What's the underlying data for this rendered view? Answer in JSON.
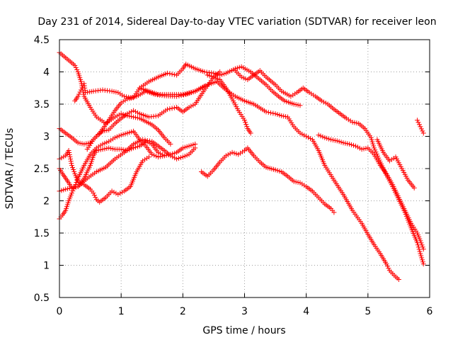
{
  "chart_data": {
    "type": "scatter",
    "title": "Day 231 of 2014, Sidereal Day-to-day VTEC variation (SDTVAR) for receiver leon",
    "xlabel": "GPS time / hours",
    "ylabel": "SDTVAR / TECUs",
    "xlim": [
      0,
      6
    ],
    "ylim": [
      0.5,
      4.5
    ],
    "xticks": [
      0,
      1,
      2,
      3,
      4,
      5,
      6
    ],
    "xtick_labels": [
      "0",
      "1",
      "2",
      "3",
      "4",
      "5",
      "6"
    ],
    "yticks": [
      0.5,
      1,
      1.5,
      2,
      2.5,
      3,
      3.5,
      4,
      4.5
    ],
    "ytick_labels": [
      "0.5",
      "1",
      "1.5",
      "2",
      "2.5",
      "3",
      "3.5",
      "4",
      "4.5"
    ],
    "grid": true,
    "marker": "+",
    "marker_color": "#ff0000",
    "series": [
      {
        "name": "s01",
        "points": [
          [
            0.0,
            4.3
          ],
          [
            0.15,
            4.18
          ],
          [
            0.25,
            4.1
          ],
          [
            0.3,
            4.0
          ],
          [
            0.35,
            3.85
          ],
          [
            0.4,
            3.62
          ],
          [
            0.5,
            3.45
          ],
          [
            0.6,
            3.3
          ],
          [
            0.75,
            3.2
          ],
          [
            0.9,
            3.3
          ],
          [
            1.0,
            3.35
          ],
          [
            1.1,
            3.32
          ],
          [
            1.2,
            3.3
          ],
          [
            1.3,
            3.28
          ],
          [
            1.5,
            3.18
          ],
          [
            1.6,
            3.1
          ],
          [
            1.7,
            2.98
          ],
          [
            1.8,
            2.88
          ]
        ]
      },
      {
        "name": "s02",
        "points": [
          [
            0.25,
            3.55
          ],
          [
            0.3,
            3.62
          ],
          [
            0.35,
            3.72
          ],
          [
            0.4,
            3.82
          ],
          [
            0.42,
            3.68
          ],
          [
            0.55,
            3.7
          ],
          [
            0.7,
            3.72
          ],
          [
            0.85,
            3.7
          ],
          [
            0.95,
            3.68
          ],
          [
            1.05,
            3.62
          ],
          [
            1.15,
            3.6
          ],
          [
            1.25,
            3.62
          ],
          [
            1.4,
            3.7
          ],
          [
            1.55,
            3.65
          ],
          [
            1.7,
            3.63
          ],
          [
            1.9,
            3.62
          ],
          [
            2.05,
            3.65
          ],
          [
            2.2,
            3.7
          ],
          [
            2.35,
            3.78
          ]
        ]
      },
      {
        "name": "s03",
        "points": [
          [
            0.0,
            3.12
          ],
          [
            0.1,
            3.05
          ],
          [
            0.2,
            2.98
          ],
          [
            0.3,
            2.9
          ],
          [
            0.4,
            2.88
          ],
          [
            0.5,
            2.9
          ],
          [
            0.6,
            3.0
          ],
          [
            0.7,
            3.08
          ],
          [
            0.8,
            3.1
          ],
          [
            0.9,
            3.2
          ],
          [
            1.0,
            3.28
          ],
          [
            1.1,
            3.35
          ],
          [
            1.2,
            3.4
          ],
          [
            1.3,
            3.35
          ],
          [
            1.45,
            3.3
          ],
          [
            1.6,
            3.32
          ],
          [
            1.75,
            3.42
          ],
          [
            1.9,
            3.45
          ],
          [
            2.0,
            3.38
          ],
          [
            2.1,
            3.45
          ],
          [
            2.2,
            3.5
          ],
          [
            2.35,
            3.72
          ],
          [
            2.5,
            3.92
          ],
          [
            2.6,
            4.0
          ]
        ]
      },
      {
        "name": "s04",
        "points": [
          [
            0.45,
            2.8
          ],
          [
            0.55,
            2.95
          ],
          [
            0.65,
            3.05
          ],
          [
            0.75,
            3.18
          ],
          [
            0.9,
            3.4
          ],
          [
            1.0,
            3.52
          ],
          [
            1.1,
            3.58
          ],
          [
            1.2,
            3.6
          ],
          [
            1.3,
            3.75
          ],
          [
            1.45,
            3.85
          ],
          [
            1.6,
            3.92
          ],
          [
            1.75,
            3.98
          ],
          [
            1.9,
            3.95
          ],
          [
            2.0,
            4.05
          ],
          [
            2.05,
            4.12
          ],
          [
            2.2,
            4.05
          ],
          [
            2.35,
            4.0
          ],
          [
            2.5,
            3.98
          ],
          [
            2.6,
            3.95
          ],
          [
            2.7,
            3.98
          ],
          [
            2.85,
            4.05
          ],
          [
            2.95,
            4.08
          ],
          [
            3.1,
            4.0
          ],
          [
            3.2,
            3.92
          ],
          [
            3.35,
            3.8
          ],
          [
            3.45,
            3.7
          ],
          [
            3.55,
            3.62
          ],
          [
            3.65,
            3.55
          ],
          [
            3.8,
            3.5
          ],
          [
            3.9,
            3.48
          ]
        ]
      },
      {
        "name": "s05",
        "points": [
          [
            1.3,
            3.75
          ],
          [
            1.45,
            3.7
          ],
          [
            1.6,
            3.65
          ],
          [
            1.8,
            3.65
          ],
          [
            2.0,
            3.65
          ],
          [
            2.2,
            3.7
          ],
          [
            2.4,
            3.8
          ],
          [
            2.55,
            3.85
          ],
          [
            2.7,
            3.72
          ],
          [
            2.85,
            3.62
          ],
          [
            3.0,
            3.55
          ],
          [
            3.15,
            3.5
          ],
          [
            3.35,
            3.38
          ],
          [
            3.5,
            3.35
          ],
          [
            3.6,
            3.32
          ],
          [
            3.7,
            3.3
          ],
          [
            3.8,
            3.15
          ],
          [
            3.9,
            3.05
          ],
          [
            4.0,
            3.0
          ],
          [
            4.1,
            2.95
          ],
          [
            4.2,
            2.78
          ],
          [
            4.3,
            2.55
          ],
          [
            4.45,
            2.32
          ],
          [
            4.6,
            2.1
          ],
          [
            4.75,
            1.85
          ],
          [
            4.9,
            1.65
          ],
          [
            5.0,
            1.48
          ],
          [
            5.1,
            1.32
          ],
          [
            5.2,
            1.18
          ],
          [
            5.3,
            1.02
          ],
          [
            5.35,
            0.92
          ],
          [
            5.45,
            0.82
          ],
          [
            5.5,
            0.78
          ]
        ]
      },
      {
        "name": "s06",
        "points": [
          [
            2.4,
            3.95
          ],
          [
            2.5,
            3.92
          ],
          [
            2.6,
            3.88
          ],
          [
            2.7,
            3.75
          ],
          [
            2.8,
            3.58
          ],
          [
            2.9,
            3.4
          ],
          [
            3.0,
            3.25
          ],
          [
            3.05,
            3.12
          ],
          [
            3.1,
            3.05
          ]
        ]
      },
      {
        "name": "s07",
        "points": [
          [
            2.85,
            4.02
          ],
          [
            2.95,
            3.92
          ],
          [
            3.05,
            3.88
          ],
          [
            3.15,
            3.95
          ],
          [
            3.25,
            4.02
          ],
          [
            3.35,
            3.92
          ],
          [
            3.5,
            3.8
          ],
          [
            3.6,
            3.7
          ],
          [
            3.75,
            3.62
          ],
          [
            3.85,
            3.68
          ],
          [
            3.95,
            3.75
          ],
          [
            4.05,
            3.68
          ],
          [
            4.15,
            3.62
          ],
          [
            4.25,
            3.55
          ],
          [
            4.35,
            3.5
          ],
          [
            4.45,
            3.42
          ],
          [
            4.55,
            3.35
          ],
          [
            4.65,
            3.28
          ],
          [
            4.75,
            3.22
          ],
          [
            4.85,
            3.2
          ],
          [
            4.95,
            3.12
          ],
          [
            5.05,
            2.98
          ],
          [
            5.1,
            2.82
          ],
          [
            5.2,
            2.6
          ],
          [
            5.3,
            2.4
          ],
          [
            5.4,
            2.22
          ],
          [
            5.5,
            2.02
          ],
          [
            5.6,
            1.82
          ],
          [
            5.7,
            1.58
          ],
          [
            5.8,
            1.35
          ],
          [
            5.85,
            1.18
          ],
          [
            5.9,
            1.02
          ]
        ]
      },
      {
        "name": "s08",
        "points": [
          [
            4.2,
            3.02
          ],
          [
            4.3,
            2.98
          ],
          [
            4.4,
            2.95
          ],
          [
            4.5,
            2.93
          ],
          [
            4.6,
            2.9
          ],
          [
            4.7,
            2.88
          ],
          [
            4.8,
            2.85
          ],
          [
            4.9,
            2.8
          ],
          [
            5.0,
            2.82
          ],
          [
            5.1,
            2.72
          ],
          [
            5.2,
            2.55
          ],
          [
            5.3,
            2.42
          ],
          [
            5.4,
            2.25
          ],
          [
            5.5,
            2.05
          ],
          [
            5.6,
            1.85
          ],
          [
            5.7,
            1.65
          ],
          [
            5.8,
            1.5
          ],
          [
            5.85,
            1.38
          ],
          [
            5.9,
            1.25
          ]
        ]
      },
      {
        "name": "s09",
        "points": [
          [
            5.8,
            3.25
          ],
          [
            5.85,
            3.15
          ],
          [
            5.9,
            3.05
          ]
        ]
      },
      {
        "name": "s10",
        "points": [
          [
            5.15,
            2.95
          ],
          [
            5.25,
            2.75
          ],
          [
            5.35,
            2.62
          ],
          [
            5.45,
            2.68
          ],
          [
            5.55,
            2.5
          ],
          [
            5.65,
            2.32
          ],
          [
            5.75,
            2.2
          ]
        ]
      },
      {
        "name": "s11",
        "points": [
          [
            0.0,
            2.65
          ],
          [
            0.1,
            2.7
          ],
          [
            0.15,
            2.78
          ],
          [
            0.2,
            2.55
          ],
          [
            0.25,
            2.42
          ],
          [
            0.3,
            2.3
          ],
          [
            0.4,
            2.25
          ],
          [
            0.5,
            2.18
          ],
          [
            0.55,
            2.12
          ],
          [
            0.6,
            2.02
          ],
          [
            0.65,
            1.98
          ],
          [
            0.75,
            2.05
          ],
          [
            0.85,
            2.15
          ],
          [
            0.95,
            2.1
          ],
          [
            1.05,
            2.15
          ],
          [
            1.15,
            2.22
          ],
          [
            1.25,
            2.45
          ],
          [
            1.35,
            2.62
          ],
          [
            1.45,
            2.68
          ]
        ]
      },
      {
        "name": "s12",
        "points": [
          [
            0.0,
            2.5
          ],
          [
            0.05,
            2.42
          ],
          [
            0.1,
            2.35
          ],
          [
            0.15,
            2.28
          ],
          [
            0.2,
            2.2
          ],
          [
            0.3,
            2.22
          ],
          [
            0.45,
            2.35
          ],
          [
            0.6,
            2.45
          ],
          [
            0.75,
            2.52
          ],
          [
            0.9,
            2.65
          ],
          [
            1.05,
            2.75
          ],
          [
            1.2,
            2.88
          ],
          [
            1.35,
            2.95
          ],
          [
            1.5,
            2.92
          ],
          [
            1.6,
            2.85
          ],
          [
            1.7,
            2.78
          ],
          [
            1.8,
            2.7
          ],
          [
            1.9,
            2.65
          ],
          [
            2.0,
            2.68
          ],
          [
            2.1,
            2.72
          ],
          [
            2.2,
            2.82
          ]
        ]
      },
      {
        "name": "s13",
        "points": [
          [
            0.0,
            2.15
          ],
          [
            0.1,
            2.18
          ],
          [
            0.2,
            2.2
          ],
          [
            0.3,
            2.22
          ],
          [
            0.4,
            2.35
          ],
          [
            0.5,
            2.55
          ],
          [
            0.55,
            2.7
          ],
          [
            0.6,
            2.78
          ],
          [
            0.7,
            2.8
          ],
          [
            0.8,
            2.82
          ],
          [
            0.9,
            2.8
          ],
          [
            1.0,
            2.8
          ],
          [
            1.1,
            2.78
          ],
          [
            1.2,
            2.82
          ],
          [
            1.3,
            2.85
          ],
          [
            1.4,
            2.92
          ],
          [
            1.5,
            2.88
          ],
          [
            1.6,
            2.75
          ],
          [
            1.7,
            2.7
          ],
          [
            1.8,
            2.72
          ],
          [
            1.9,
            2.75
          ],
          [
            2.0,
            2.82
          ],
          [
            2.1,
            2.85
          ],
          [
            2.2,
            2.88
          ]
        ]
      },
      {
        "name": "s14",
        "points": [
          [
            0.0,
            1.72
          ],
          [
            0.05,
            1.78
          ],
          [
            0.1,
            1.85
          ],
          [
            0.15,
            2.0
          ],
          [
            0.2,
            2.12
          ],
          [
            0.25,
            2.22
          ],
          [
            0.3,
            2.35
          ],
          [
            0.4,
            2.55
          ],
          [
            0.5,
            2.72
          ],
          [
            0.6,
            2.82
          ],
          [
            0.7,
            2.88
          ],
          [
            0.8,
            2.92
          ],
          [
            0.9,
            2.98
          ],
          [
            1.0,
            3.02
          ],
          [
            1.1,
            3.05
          ],
          [
            1.2,
            3.08
          ],
          [
            1.3,
            2.95
          ],
          [
            1.4,
            2.85
          ],
          [
            1.5,
            2.72
          ],
          [
            1.6,
            2.68
          ],
          [
            1.7,
            2.7
          ]
        ]
      },
      {
        "name": "s15",
        "points": [
          [
            2.3,
            2.45
          ],
          [
            2.4,
            2.38
          ],
          [
            2.5,
            2.48
          ],
          [
            2.6,
            2.6
          ],
          [
            2.7,
            2.7
          ],
          [
            2.8,
            2.75
          ],
          [
            2.9,
            2.72
          ],
          [
            3.0,
            2.78
          ],
          [
            3.05,
            2.82
          ],
          [
            3.15,
            2.7
          ],
          [
            3.25,
            2.6
          ],
          [
            3.35,
            2.52
          ],
          [
            3.5,
            2.48
          ],
          [
            3.6,
            2.45
          ],
          [
            3.7,
            2.38
          ],
          [
            3.8,
            2.3
          ],
          [
            3.9,
            2.28
          ],
          [
            4.0,
            2.22
          ],
          [
            4.1,
            2.15
          ],
          [
            4.2,
            2.05
          ],
          [
            4.3,
            1.95
          ],
          [
            4.4,
            1.88
          ],
          [
            4.45,
            1.82
          ]
        ]
      }
    ]
  }
}
